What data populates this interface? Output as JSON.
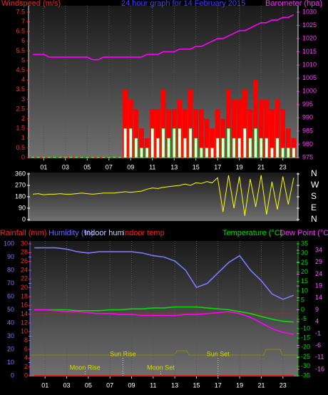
{
  "chart_data": [
    {
      "type": "bar",
      "headers": [
        {
          "text": "Windspeed (m/s)",
          "color": "#ff2020"
        },
        {
          "text": "24 hour graph for 14 February 2015",
          "color": "#4040ff"
        },
        {
          "text": "Barometer (hpa)",
          "color": "#ff30ff"
        }
      ],
      "x": [
        0,
        0.5,
        1,
        1.5,
        2,
        2.5,
        3,
        3.5,
        4,
        4.5,
        5,
        5.5,
        6,
        6.5,
        7,
        7.5,
        8,
        8.5,
        9,
        9.5,
        10,
        10.5,
        11,
        11.5,
        12,
        12.5,
        13,
        13.5,
        14,
        14.5,
        15,
        15.5,
        16,
        16.5,
        17,
        17.5,
        18,
        18.5,
        19,
        19.5,
        20,
        20.5,
        21,
        21.5,
        22,
        22.5,
        23,
        23.5,
        24
      ],
      "xlim": [
        -0.4,
        24.4
      ],
      "xticks": [
        {
          "value": 1,
          "label": "01"
        },
        {
          "value": 3,
          "label": "03"
        },
        {
          "value": 5,
          "label": "05"
        },
        {
          "value": 7,
          "label": "07"
        },
        {
          "value": 9,
          "label": "09"
        },
        {
          "value": 11,
          "label": "11"
        },
        {
          "value": 13,
          "label": "13"
        },
        {
          "value": 15,
          "label": "15"
        },
        {
          "value": 17,
          "label": "17"
        },
        {
          "value": 19,
          "label": "19"
        },
        {
          "value": 21,
          "label": "21"
        },
        {
          "value": 23,
          "label": "23"
        }
      ],
      "grid": true,
      "ylim": [
        0,
        7.5
      ],
      "yticks": [
        0,
        0.5,
        1,
        1.5,
        2,
        2.5,
        3,
        3.5,
        4,
        4.5,
        5,
        5.5,
        6,
        6.5,
        7,
        7.5
      ],
      "y2lim": [
        975,
        1030
      ],
      "y2ticks": [
        975,
        980,
        985,
        990,
        995,
        1000,
        1005,
        1010,
        1015,
        1020,
        1025,
        1030
      ],
      "series": [
        {
          "color": "#ff0000",
          "values": [
            0,
            0,
            0,
            0,
            0,
            0,
            0,
            0,
            0,
            0,
            0,
            0,
            0,
            0,
            0,
            0,
            0,
            3.5,
            3,
            2.5,
            1.5,
            1,
            2.5,
            2.5,
            3.5,
            2.5,
            2.5,
            3,
            2.5,
            3.5,
            2.5,
            2.5,
            2,
            1.5,
            2.5,
            2,
            3.5,
            3,
            3,
            3.5,
            2.5,
            4,
            3,
            3,
            2.5,
            3,
            2.5,
            1.5,
            1
          ]
        },
        {
          "color": "#00c800",
          "values": [
            0,
            0,
            0,
            0,
            0,
            0,
            0,
            0,
            0,
            0,
            0,
            0,
            0,
            0,
            0,
            0,
            0,
            1.5,
            1.5,
            1,
            0.5,
            0.5,
            1.5,
            1,
            1.5,
            1,
            1.5,
            1.5,
            1,
            1.5,
            1,
            0.5,
            0.5,
            0.5,
            1,
            1,
            1.5,
            1,
            1,
            1.5,
            1,
            1.5,
            1,
            1,
            0.5,
            1,
            0.5,
            0.5,
            0.5
          ]
        },
        {
          "color": "#ff00ff",
          "type": "line",
          "axis": "y2",
          "values": [
            1014,
            1014,
            1014,
            1013,
            1013,
            1013,
            1013,
            1013,
            1013,
            1013,
            1013,
            1012,
            1012,
            1013,
            1013,
            1013,
            1013,
            1013,
            1013,
            1013,
            1013,
            1014,
            1014,
            1014,
            1015,
            1015,
            1015,
            1016,
            1016,
            1016,
            1017,
            1017,
            1018,
            1019,
            1020,
            1020,
            1021,
            1022,
            1023,
            1023,
            1024,
            1025,
            1026,
            1026,
            1027,
            1027,
            1028,
            1028,
            1029
          ]
        }
      ]
    },
    {
      "type": "line",
      "x": [
        0,
        0.5,
        1,
        1.5,
        2,
        2.5,
        3,
        3.5,
        4,
        4.5,
        5,
        5.5,
        6,
        6.5,
        7,
        7.5,
        8,
        8.5,
        9,
        9.5,
        10,
        10.5,
        11,
        11.5,
        12,
        12.5,
        13,
        13.5,
        14,
        14.5,
        15,
        15.5,
        16,
        16.5,
        17,
        17.5,
        18,
        18.5,
        19,
        19.5,
        20,
        20.5,
        21,
        21.5,
        22,
        22.5,
        23,
        23.5,
        24
      ],
      "xlim": [
        -0.4,
        24.4
      ],
      "ylim": [
        0,
        360
      ],
      "yticks": [
        0,
        90,
        180,
        270,
        360
      ],
      "y2lim": [
        0,
        360
      ],
      "y2ticks": [
        {
          "value": 360,
          "label": "N"
        },
        {
          "value": 270,
          "label": "W"
        },
        {
          "value": 180,
          "label": "S"
        },
        {
          "value": 90,
          "label": "E"
        },
        {
          "value": 0,
          "label": "N"
        }
      ],
      "series": [
        {
          "color": "#ffff00",
          "values": [
            200,
            205,
            195,
            200,
            200,
            205,
            200,
            200,
            205,
            210,
            205,
            200,
            205,
            210,
            210,
            210,
            215,
            220,
            215,
            220,
            225,
            240,
            250,
            245,
            255,
            260,
            265,
            270,
            280,
            270,
            290,
            285,
            300,
            290,
            330,
            60,
            350,
            90,
            340,
            30,
            320,
            100,
            350,
            40,
            300,
            80,
            340,
            120,
            330
          ]
        }
      ]
    },
    {
      "type": "line",
      "headers": [
        {
          "text": "Rainfall (mm)",
          "color": "#ff2020"
        },
        {
          "text": "Humidity (%)",
          "color": "#6a6aff"
        },
        {
          "text": "Indoor hum",
          "color": "#d0d0ff"
        },
        {
          "text": "Indoor temp",
          "color": "#ff2020"
        },
        {
          "text": "Temperature (°C)",
          "color": "#00e000"
        },
        {
          "text": "Dew Point (°C)",
          "color": "#ff30ff"
        }
      ],
      "x": [
        0,
        1,
        2,
        3,
        4,
        5,
        6,
        7,
        8,
        9,
        10,
        11,
        12,
        13,
        14,
        15,
        16,
        17,
        18,
        19,
        20,
        21,
        22,
        23,
        24
      ],
      "xlim": [
        -0.4,
        24.4
      ],
      "xticks": [
        {
          "value": 1,
          "label": "01"
        },
        {
          "value": 3,
          "label": "03"
        },
        {
          "value": 5,
          "label": "05"
        },
        {
          "value": 7,
          "label": "07"
        },
        {
          "value": 9,
          "label": "09"
        },
        {
          "value": 11,
          "label": "11"
        },
        {
          "value": 13,
          "label": "13"
        },
        {
          "value": 15,
          "label": "15"
        },
        {
          "value": 17,
          "label": "17"
        },
        {
          "value": 19,
          "label": "19"
        },
        {
          "value": 21,
          "label": "21"
        },
        {
          "value": 23,
          "label": "23"
        }
      ],
      "grid": true,
      "ylim": [
        0,
        100
      ],
      "yticks": [
        0,
        10,
        20,
        30,
        40,
        50,
        60,
        70,
        80,
        90,
        100
      ],
      "y2lim": [
        -35,
        35
      ],
      "y2ticks": [
        -35,
        -30,
        -25,
        -20,
        -15,
        -10,
        -5,
        0,
        5,
        10,
        15,
        20,
        25,
        30,
        35
      ],
      "y3lim": [
        0,
        30
      ],
      "y3ticks": [
        0,
        2,
        4,
        6,
        8,
        10,
        12,
        14,
        16,
        18,
        20,
        22,
        24,
        26,
        28,
        30
      ],
      "y4lim": [
        -18.7,
        36.7
      ],
      "y4ticks": [
        -16,
        -11,
        -6,
        -1,
        4,
        9,
        14,
        19,
        24,
        29,
        34
      ],
      "series": [
        {
          "color": "#ff0000",
          "axis": "y3",
          "values": [
            0,
            0,
            0,
            0,
            0,
            0,
            0,
            0,
            0,
            0,
            0,
            0,
            0,
            0,
            0,
            0,
            0,
            0,
            0,
            0,
            0,
            0,
            0,
            0,
            0
          ]
        },
        {
          "color": "#a02828",
          "axis": "y4",
          "values": [
            7.5,
            7.5,
            7.5,
            7.5,
            7.5,
            7.5,
            7.5,
            7.5,
            7.5,
            7.5,
            7.5,
            7.5,
            7.5,
            7.5,
            7.5,
            7.5,
            7.5,
            7.5,
            7.5,
            7.5,
            7.5,
            7.5,
            7.5,
            7.5,
            7.5
          ]
        },
        {
          "color": "#7a7aff",
          "axis": "y",
          "values": [
            97,
            97,
            97,
            96,
            94,
            93,
            94,
            94,
            94,
            94,
            93,
            91,
            90,
            87,
            80,
            67,
            70,
            78,
            86,
            91,
            80,
            72,
            62,
            58,
            61
          ]
        },
        {
          "color": "#00e000",
          "axis": "y2",
          "values": [
            0,
            0,
            0,
            0,
            -0.5,
            -0.5,
            -0.5,
            0,
            0,
            0.5,
            0.5,
            1,
            1,
            1.5,
            1.5,
            1.5,
            1,
            0.5,
            0,
            -1,
            -2,
            -3.5,
            -5,
            -6,
            -6.5
          ]
        },
        {
          "color": "#ff00ff",
          "axis": "y2",
          "values": [
            0,
            0,
            -0.5,
            -1,
            -1,
            -1.5,
            -2,
            -2,
            -2.5,
            -2.5,
            -3,
            -3,
            -3,
            -3,
            -2.5,
            -2.5,
            -2,
            -1.5,
            -1,
            -2,
            -4,
            -7,
            -10,
            -12,
            -13
          ]
        }
      ],
      "annotations": [
        {
          "text": "Moon Rise",
          "x": 4.7
        },
        {
          "text": "Sun Rise",
          "x": 8.2
        },
        {
          "text": "Moon Set",
          "x": 11.7
        },
        {
          "text": "Sun Set",
          "x": 17.0
        }
      ]
    }
  ]
}
